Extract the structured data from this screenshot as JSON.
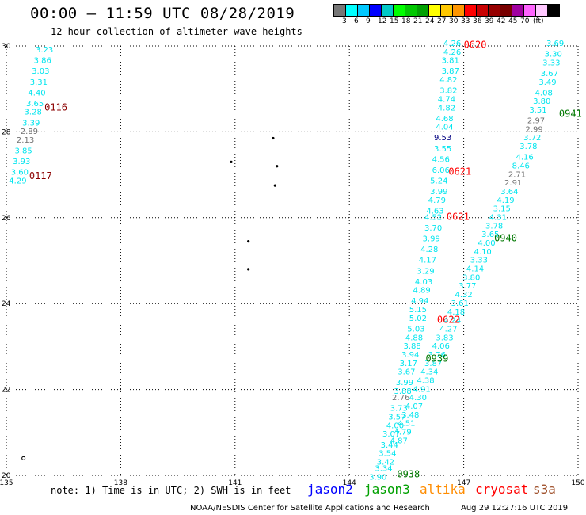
{
  "header": {
    "title": "00:00 – 11:59 UTC 08/28/2019",
    "subtitle": "12 hour collection of altimeter wave heights"
  },
  "colorbar": {
    "colors": [
      "#777777",
      "#00ffff",
      "#00c8ff",
      "#0000ff",
      "#00c8c8",
      "#00ff00",
      "#00c800",
      "#00a000",
      "#ffff00",
      "#ffc800",
      "#ff9600",
      "#ff0000",
      "#c80000",
      "#960000",
      "#780000",
      "#a000a0",
      "#ff64ff",
      "#ffc8ff",
      "#000000"
    ],
    "labels": [
      "3",
      "6",
      "9",
      "12",
      "15",
      "18",
      "21",
      "24",
      "27",
      "30",
      "33",
      "36",
      "39",
      "42",
      "45",
      "70",
      "(ft)"
    ]
  },
  "axes": {
    "x_ticks": [
      "135",
      "138",
      "141",
      "144",
      "147",
      "150"
    ],
    "y_ticks": [
      "20",
      "22",
      "24",
      "26",
      "28",
      "30"
    ],
    "xlim": [
      135,
      150
    ],
    "ylim": [
      20,
      30
    ]
  },
  "colors": {
    "cyan": "#00e5ee",
    "gray": "#707070",
    "darkred_label": "#8b0000",
    "red_label": "#ff0000",
    "green_label": "#007800",
    "navy": "#000080"
  },
  "chart_data": {
    "type": "scatter",
    "observations": [
      {
        "lon": 136.0,
        "lat": 29.85,
        "v": "3.23",
        "c": "cyan"
      },
      {
        "lon": 135.95,
        "lat": 29.6,
        "v": "3.86",
        "c": "cyan"
      },
      {
        "lon": 135.9,
        "lat": 29.35,
        "v": "3.03",
        "c": "cyan"
      },
      {
        "lon": 135.85,
        "lat": 29.1,
        "v": "3.31",
        "c": "cyan"
      },
      {
        "lon": 135.8,
        "lat": 28.85,
        "v": "4.40",
        "c": "cyan"
      },
      {
        "lon": 135.75,
        "lat": 28.6,
        "v": "3.65",
        "c": "cyan"
      },
      {
        "lon": 135.7,
        "lat": 28.4,
        "v": "3.28",
        "c": "cyan"
      },
      {
        "lon": 135.65,
        "lat": 28.15,
        "v": "3.39",
        "c": "cyan"
      },
      {
        "lon": 135.6,
        "lat": 27.95,
        "v": "2.89",
        "c": "gray"
      },
      {
        "lon": 135.5,
        "lat": 27.75,
        "v": "2.13",
        "c": "gray"
      },
      {
        "lon": 135.45,
        "lat": 27.5,
        "v": "3.85",
        "c": "cyan"
      },
      {
        "lon": 135.4,
        "lat": 27.25,
        "v": "3.93",
        "c": "cyan"
      },
      {
        "lon": 135.35,
        "lat": 27.0,
        "v": "3.60",
        "c": "cyan"
      },
      {
        "lon": 135.3,
        "lat": 26.8,
        "v": "4.29",
        "c": "cyan"
      },
      {
        "lon": 146.7,
        "lat": 30.0,
        "v": "4.26",
        "c": "cyan"
      },
      {
        "lon": 146.7,
        "lat": 29.8,
        "v": "4.26",
        "c": "cyan"
      },
      {
        "lon": 146.65,
        "lat": 29.6,
        "v": "3.81",
        "c": "cyan"
      },
      {
        "lon": 146.65,
        "lat": 29.35,
        "v": "3.87",
        "c": "cyan"
      },
      {
        "lon": 146.6,
        "lat": 29.15,
        "v": "4.82",
        "c": "cyan"
      },
      {
        "lon": 146.6,
        "lat": 28.9,
        "v": "3.82",
        "c": "cyan"
      },
      {
        "lon": 146.55,
        "lat": 28.7,
        "v": "4.74",
        "c": "cyan"
      },
      {
        "lon": 146.55,
        "lat": 28.5,
        "v": "4.82",
        "c": "cyan"
      },
      {
        "lon": 146.5,
        "lat": 28.25,
        "v": "4.68",
        "c": "cyan"
      },
      {
        "lon": 146.5,
        "lat": 28.05,
        "v": "4.04",
        "c": "cyan"
      },
      {
        "lon": 146.45,
        "lat": 27.8,
        "v": "9.53",
        "c": "navy"
      },
      {
        "lon": 146.45,
        "lat": 27.55,
        "v": "3.55",
        "c": "cyan"
      },
      {
        "lon": 146.4,
        "lat": 27.3,
        "v": "4.56",
        "c": "cyan"
      },
      {
        "lon": 146.4,
        "lat": 27.05,
        "v": "6.06",
        "c": "cyan"
      },
      {
        "lon": 146.35,
        "lat": 26.8,
        "v": "5.24",
        "c": "cyan"
      },
      {
        "lon": 146.35,
        "lat": 26.55,
        "v": "3.99",
        "c": "cyan"
      },
      {
        "lon": 146.3,
        "lat": 26.35,
        "v": "4.79",
        "c": "cyan"
      },
      {
        "lon": 146.25,
        "lat": 26.1,
        "v": "4.63",
        "c": "cyan"
      },
      {
        "lon": 146.2,
        "lat": 25.95,
        "v": "4.52",
        "c": "cyan"
      },
      {
        "lon": 146.2,
        "lat": 25.7,
        "v": "3.70",
        "c": "cyan"
      },
      {
        "lon": 146.15,
        "lat": 25.45,
        "v": "3.99",
        "c": "cyan"
      },
      {
        "lon": 146.1,
        "lat": 25.2,
        "v": "4.28",
        "c": "cyan"
      },
      {
        "lon": 146.05,
        "lat": 24.95,
        "v": "4.17",
        "c": "cyan"
      },
      {
        "lon": 146.0,
        "lat": 24.7,
        "v": "3.29",
        "c": "cyan"
      },
      {
        "lon": 145.95,
        "lat": 24.45,
        "v": "4.03",
        "c": "cyan"
      },
      {
        "lon": 145.9,
        "lat": 24.25,
        "v": "4.89",
        "c": "cyan"
      },
      {
        "lon": 145.85,
        "lat": 24.0,
        "v": "4.94",
        "c": "cyan"
      },
      {
        "lon": 145.8,
        "lat": 23.8,
        "v": "5.15",
        "c": "cyan"
      },
      {
        "lon": 145.8,
        "lat": 23.6,
        "v": "5.02",
        "c": "cyan"
      },
      {
        "lon": 145.75,
        "lat": 23.35,
        "v": "5.03",
        "c": "cyan"
      },
      {
        "lon": 145.7,
        "lat": 23.15,
        "v": "4.88",
        "c": "cyan"
      },
      {
        "lon": 145.65,
        "lat": 22.95,
        "v": "3.88",
        "c": "cyan"
      },
      {
        "lon": 145.6,
        "lat": 22.75,
        "v": "3.94",
        "c": "cyan"
      },
      {
        "lon": 145.55,
        "lat": 22.55,
        "v": "3.17",
        "c": "cyan"
      },
      {
        "lon": 145.5,
        "lat": 22.35,
        "v": "3.67",
        "c": "cyan"
      },
      {
        "lon": 145.45,
        "lat": 22.1,
        "v": "3.99",
        "c": "cyan"
      },
      {
        "lon": 145.4,
        "lat": 21.9,
        "v": "3.88",
        "c": "cyan"
      },
      {
        "lon": 145.35,
        "lat": 21.75,
        "v": "2.76",
        "c": "gray"
      },
      {
        "lon": 145.3,
        "lat": 21.5,
        "v": "3.73",
        "c": "cyan"
      },
      {
        "lon": 145.25,
        "lat": 21.3,
        "v": "3.57",
        "c": "cyan"
      },
      {
        "lon": 145.2,
        "lat": 21.1,
        "v": "4.00",
        "c": "cyan"
      },
      {
        "lon": 145.1,
        "lat": 20.9,
        "v": "3.07",
        "c": "cyan"
      },
      {
        "lon": 145.05,
        "lat": 20.65,
        "v": "3.44",
        "c": "cyan"
      },
      {
        "lon": 145.0,
        "lat": 20.45,
        "v": "3.54",
        "c": "cyan"
      },
      {
        "lon": 144.95,
        "lat": 20.25,
        "v": "3.42",
        "c": "cyan"
      },
      {
        "lon": 144.9,
        "lat": 20.1,
        "v": "3.34",
        "c": "cyan"
      },
      {
        "lon": 144.75,
        "lat": 19.9,
        "v": "3.90",
        "c": "cyan"
      },
      {
        "lon": 149.4,
        "lat": 30.0,
        "v": "3.69",
        "c": "cyan"
      },
      {
        "lon": 149.35,
        "lat": 29.75,
        "v": "3.30",
        "c": "cyan"
      },
      {
        "lon": 149.3,
        "lat": 29.55,
        "v": "3.33",
        "c": "cyan"
      },
      {
        "lon": 149.25,
        "lat": 29.3,
        "v": "3.67",
        "c": "cyan"
      },
      {
        "lon": 149.2,
        "lat": 29.1,
        "v": "3.49",
        "c": "cyan"
      },
      {
        "lon": 149.1,
        "lat": 28.85,
        "v": "4.08",
        "c": "cyan"
      },
      {
        "lon": 149.05,
        "lat": 28.65,
        "v": "3.80",
        "c": "cyan"
      },
      {
        "lon": 148.95,
        "lat": 28.45,
        "v": "3.51",
        "c": "cyan"
      },
      {
        "lon": 148.9,
        "lat": 28.2,
        "v": "2.97",
        "c": "gray"
      },
      {
        "lon": 148.85,
        "lat": 28.0,
        "v": "2.99",
        "c": "gray"
      },
      {
        "lon": 148.8,
        "lat": 27.8,
        "v": "3.72",
        "c": "cyan"
      },
      {
        "lon": 148.7,
        "lat": 27.6,
        "v": "3.78",
        "c": "cyan"
      },
      {
        "lon": 148.6,
        "lat": 27.35,
        "v": "4.16",
        "c": "cyan"
      },
      {
        "lon": 148.5,
        "lat": 27.15,
        "v": "8.46",
        "c": "cyan"
      },
      {
        "lon": 148.4,
        "lat": 26.95,
        "v": "2.71",
        "c": "gray"
      },
      {
        "lon": 148.3,
        "lat": 26.75,
        "v": "2.91",
        "c": "gray"
      },
      {
        "lon": 148.2,
        "lat": 26.55,
        "v": "3.64",
        "c": "cyan"
      },
      {
        "lon": 148.1,
        "lat": 26.35,
        "v": "4.19",
        "c": "cyan"
      },
      {
        "lon": 148.0,
        "lat": 26.15,
        "v": "3.15",
        "c": "cyan"
      },
      {
        "lon": 147.9,
        "lat": 25.95,
        "v": "4.31",
        "c": "cyan"
      },
      {
        "lon": 147.8,
        "lat": 25.75,
        "v": "3.78",
        "c": "cyan"
      },
      {
        "lon": 147.7,
        "lat": 25.55,
        "v": "3.65",
        "c": "cyan"
      },
      {
        "lon": 147.6,
        "lat": 25.35,
        "v": "4.00",
        "c": "cyan"
      },
      {
        "lon": 147.5,
        "lat": 25.15,
        "v": "4.10",
        "c": "cyan"
      },
      {
        "lon": 147.4,
        "lat": 24.95,
        "v": "3.33",
        "c": "cyan"
      },
      {
        "lon": 147.3,
        "lat": 24.75,
        "v": "4.14",
        "c": "cyan"
      },
      {
        "lon": 147.2,
        "lat": 24.55,
        "v": "3.80",
        "c": "cyan"
      },
      {
        "lon": 147.1,
        "lat": 24.35,
        "v": "3.77",
        "c": "cyan"
      },
      {
        "lon": 147.0,
        "lat": 24.15,
        "v": "4.32",
        "c": "cyan"
      },
      {
        "lon": 146.9,
        "lat": 23.95,
        "v": "3.61",
        "c": "cyan"
      },
      {
        "lon": 146.8,
        "lat": 23.75,
        "v": "4.18",
        "c": "cyan"
      },
      {
        "lon": 146.7,
        "lat": 23.55,
        "v": "4.24",
        "c": "cyan"
      },
      {
        "lon": 146.6,
        "lat": 23.35,
        "v": "4.27",
        "c": "cyan"
      },
      {
        "lon": 146.5,
        "lat": 23.15,
        "v": "3.83",
        "c": "cyan"
      },
      {
        "lon": 146.4,
        "lat": 22.95,
        "v": "4.06",
        "c": "cyan"
      },
      {
        "lon": 146.3,
        "lat": 22.75,
        "v": "3.76",
        "c": "cyan"
      },
      {
        "lon": 146.2,
        "lat": 22.55,
        "v": "3.87",
        "c": "cyan"
      },
      {
        "lon": 146.1,
        "lat": 22.35,
        "v": "4.34",
        "c": "cyan"
      },
      {
        "lon": 146.0,
        "lat": 22.15,
        "v": "4.38",
        "c": "cyan"
      },
      {
        "lon": 145.9,
        "lat": 21.95,
        "v": "4.91",
        "c": "cyan"
      },
      {
        "lon": 145.8,
        "lat": 21.75,
        "v": "4.30",
        "c": "cyan"
      },
      {
        "lon": 145.7,
        "lat": 21.55,
        "v": "4.07",
        "c": "cyan"
      },
      {
        "lon": 145.6,
        "lat": 21.35,
        "v": "3.48",
        "c": "cyan"
      },
      {
        "lon": 145.5,
        "lat": 21.15,
        "v": "4.51",
        "c": "cyan"
      },
      {
        "lon": 145.4,
        "lat": 20.95,
        "v": "4.79",
        "c": "cyan"
      },
      {
        "lon": 145.3,
        "lat": 20.75,
        "v": "4.87",
        "c": "cyan"
      }
    ],
    "time_labels": [
      {
        "lon": 136.3,
        "lat": 28.5,
        "v": "0116",
        "c": "darkred_label"
      },
      {
        "lon": 135.9,
        "lat": 26.9,
        "v": "0117",
        "c": "darkred_label"
      },
      {
        "lon": 147.3,
        "lat": 29.95,
        "v": "0620",
        "c": "red_label"
      },
      {
        "lon": 146.9,
        "lat": 27.0,
        "v": "0621",
        "c": "red_label"
      },
      {
        "lon": 146.85,
        "lat": 25.95,
        "v": "0621",
        "c": "red_label"
      },
      {
        "lon": 146.6,
        "lat": 23.55,
        "v": "0622",
        "c": "red_label"
      },
      {
        "lon": 149.8,
        "lat": 28.35,
        "v": "0941",
        "c": "green_label"
      },
      {
        "lon": 148.1,
        "lat": 25.45,
        "v": "0940",
        "c": "green_label"
      },
      {
        "lon": 146.3,
        "lat": 22.65,
        "v": "0939",
        "c": "green_label"
      },
      {
        "lon": 145.55,
        "lat": 19.95,
        "v": "0938",
        "c": "green_label"
      }
    ],
    "land": [
      {
        "lon": 142.0,
        "lat": 27.85
      },
      {
        "lon": 140.9,
        "lat": 27.3
      },
      {
        "lon": 142.1,
        "lat": 27.2
      },
      {
        "lon": 142.05,
        "lat": 26.75
      },
      {
        "lon": 141.35,
        "lat": 25.45
      },
      {
        "lon": 141.35,
        "lat": 24.8
      },
      {
        "lon": 135.45,
        "lat": 20.4
      }
    ]
  },
  "footer": {
    "note": "note: 1) Time is in UTC; 2) SWH is in feet",
    "satellites": [
      {
        "name": "jason2",
        "color": "#0000ff"
      },
      {
        "name": "jason3",
        "color": "#00a000"
      },
      {
        "name": "altika",
        "color": "#ff8c00"
      },
      {
        "name": "cryosat",
        "color": "#ff0000"
      },
      {
        "name": "s3a",
        "color": "#a0522d"
      }
    ],
    "credit": "NOAA/NESDIS Center for Satellite Applications and Research",
    "timestamp": "Aug 29 12:27:16 UTC 2019"
  }
}
